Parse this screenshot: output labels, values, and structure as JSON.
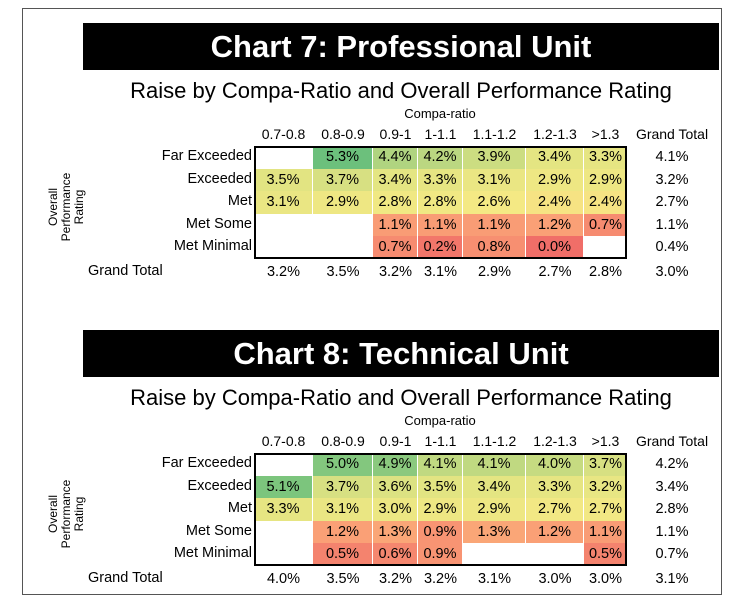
{
  "columns": [
    "0.7-0.8",
    "0.8-0.9",
    "0.9-1",
    "1-1.1",
    "1.1-1.2",
    "1.2-1.3",
    ">1.3"
  ],
  "grand_total_label": "Grand Total",
  "charts": [
    {
      "banner": "Chart 7: Professional Unit",
      "subtitle": "Raise by Compa-Ratio and Overall Performance Rating",
      "xlabel": "Compa-ratio",
      "ylabel": "Overall Performance Rating",
      "rows": [
        {
          "label": "Far Exceeded",
          "values": [
            null,
            5.3,
            4.4,
            4.2,
            3.9,
            3.4,
            3.3
          ],
          "total": "4.1%"
        },
        {
          "label": "Exceeded",
          "values": [
            3.5,
            3.7,
            3.4,
            3.3,
            3.1,
            2.9,
            2.9
          ],
          "total": "3.2%"
        },
        {
          "label": "Met",
          "values": [
            3.1,
            2.9,
            2.8,
            2.8,
            2.6,
            2.4,
            2.4
          ],
          "total": "2.7%"
        },
        {
          "label": "Met Some",
          "values": [
            null,
            null,
            1.1,
            1.1,
            1.1,
            1.2,
            0.7
          ],
          "total": "1.1%"
        },
        {
          "label": "Met Minimal",
          "values": [
            null,
            null,
            0.7,
            0.2,
            0.8,
            0.0,
            null
          ],
          "total": "0.4%"
        }
      ],
      "grand_totals": [
        "3.2%",
        "3.5%",
        "3.2%",
        "3.1%",
        "2.9%",
        "2.7%",
        "2.8%"
      ],
      "grand_total_overall": "3.0%"
    },
    {
      "banner": "Chart 8: Technical Unit",
      "subtitle": "Raise by Compa-Ratio and Overall Performance Rating",
      "xlabel": "Compa-ratio",
      "ylabel": "Overall Performance Rating",
      "rows": [
        {
          "label": "Far Exceeded",
          "values": [
            null,
            5.0,
            4.9,
            4.1,
            4.1,
            4.0,
            3.7
          ],
          "total": "4.2%"
        },
        {
          "label": "Exceeded",
          "values": [
            5.1,
            3.7,
            3.6,
            3.5,
            3.4,
            3.3,
            3.2
          ],
          "total": "3.4%"
        },
        {
          "label": "Met",
          "values": [
            3.3,
            3.1,
            3.0,
            2.9,
            2.9,
            2.7,
            2.7
          ],
          "total": "2.8%"
        },
        {
          "label": "Met Some",
          "values": [
            null,
            1.2,
            1.3,
            0.9,
            1.3,
            1.2,
            1.1
          ],
          "total": "1.1%"
        },
        {
          "label": "Met Minimal",
          "values": [
            null,
            0.5,
            0.6,
            0.9,
            null,
            null,
            0.5
          ],
          "total": "0.7%"
        }
      ],
      "grand_totals": [
        "4.0%",
        "3.5%",
        "3.2%",
        "3.2%",
        "3.1%",
        "3.0%",
        "3.0%"
      ],
      "grand_total_overall": "3.1%"
    }
  ],
  "chart_data": [
    {
      "type": "heatmap",
      "title": "Chart 7: Professional Unit",
      "subtitle": "Raise by Compa-Ratio and Overall Performance Rating",
      "xlabel": "Compa-ratio",
      "ylabel": "Overall Performance Rating",
      "x": [
        "0.7-0.8",
        "0.8-0.9",
        "0.9-1",
        "1-1.1",
        "1.1-1.2",
        "1.2-1.3",
        ">1.3"
      ],
      "y": [
        "Far Exceeded",
        "Exceeded",
        "Met",
        "Met Some",
        "Met Minimal"
      ],
      "values": [
        [
          null,
          5.3,
          4.4,
          4.2,
          3.9,
          3.4,
          3.3
        ],
        [
          3.5,
          3.7,
          3.4,
          3.3,
          3.1,
          2.9,
          2.9
        ],
        [
          3.1,
          2.9,
          2.8,
          2.8,
          2.6,
          2.4,
          2.4
        ],
        [
          null,
          null,
          1.1,
          1.1,
          1.1,
          1.2,
          0.7
        ],
        [
          null,
          null,
          0.7,
          0.2,
          0.8,
          0.0,
          null
        ]
      ],
      "row_totals": [
        4.1,
        3.2,
        2.7,
        1.1,
        0.4
      ],
      "column_totals": [
        3.2,
        3.5,
        3.2,
        3.1,
        2.9,
        2.7,
        2.8
      ],
      "grand_total": 3.0,
      "color_scale": "green-high, yellow-mid, red-low"
    },
    {
      "type": "heatmap",
      "title": "Chart 8: Technical Unit",
      "subtitle": "Raise by Compa-Ratio and Overall Performance Rating",
      "xlabel": "Compa-ratio",
      "ylabel": "Overall Performance Rating",
      "x": [
        "0.7-0.8",
        "0.8-0.9",
        "0.9-1",
        "1-1.1",
        "1.1-1.2",
        "1.2-1.3",
        ">1.3"
      ],
      "y": [
        "Far Exceeded",
        "Exceeded",
        "Met",
        "Met Some",
        "Met Minimal"
      ],
      "values": [
        [
          null,
          5.0,
          4.9,
          4.1,
          4.1,
          4.0,
          3.7
        ],
        [
          5.1,
          3.7,
          3.6,
          3.5,
          3.4,
          3.3,
          3.2
        ],
        [
          3.3,
          3.1,
          3.0,
          2.9,
          2.9,
          2.7,
          2.7
        ],
        [
          null,
          1.2,
          1.3,
          0.9,
          1.3,
          1.2,
          1.1
        ],
        [
          null,
          0.5,
          0.6,
          0.9,
          null,
          null,
          0.5
        ]
      ],
      "row_totals": [
        4.2,
        3.4,
        2.8,
        1.1,
        0.7
      ],
      "column_totals": [
        4.0,
        3.5,
        3.2,
        3.2,
        3.1,
        3.0,
        3.0
      ],
      "grand_total": 3.1,
      "color_scale": "green-high, yellow-mid, red-low"
    }
  ]
}
